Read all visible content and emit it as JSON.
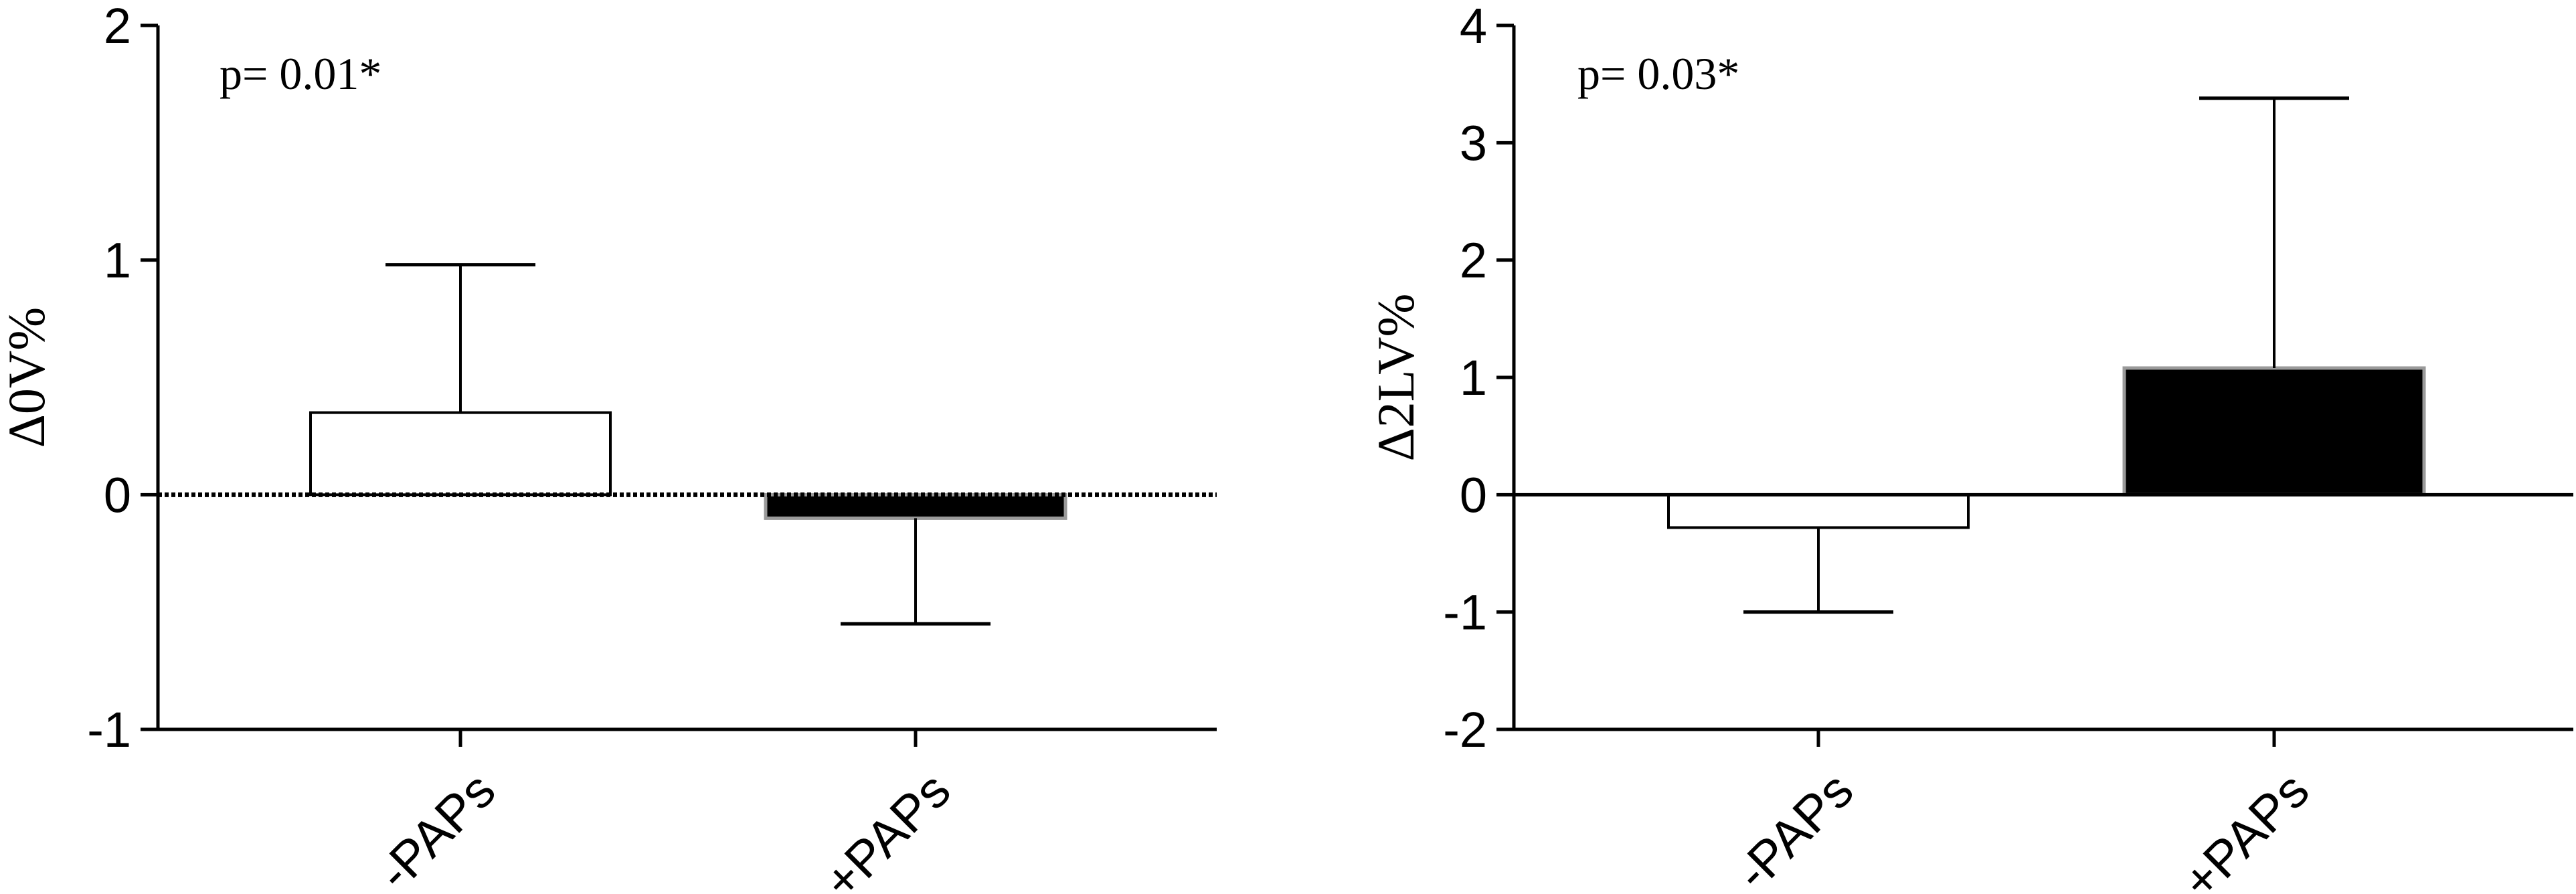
{
  "chart_data": [
    {
      "type": "bar",
      "ylabel": "Δ0V%",
      "annotation": "p= 0.01*",
      "ylim": [
        -1,
        2
      ],
      "yticks": [
        "-1",
        "0",
        "1",
        "2"
      ],
      "categories": [
        "-PAPs",
        "+PAPs"
      ],
      "values": [
        0.35,
        -0.1
      ],
      "error_bars": [
        0.63,
        -0.45
      ],
      "bar_colors": [
        "#ffffff",
        "#000000"
      ],
      "zero_line": "dotted",
      "grid": false
    },
    {
      "type": "bar",
      "ylabel": "Δ2LV%",
      "annotation": "p= 0.03*",
      "ylim": [
        -2,
        4
      ],
      "yticks": [
        "-2",
        "-1",
        "0",
        "1",
        "2",
        "3",
        "4"
      ],
      "categories": [
        "-PAPs",
        "+PAPs"
      ],
      "values": [
        -0.28,
        1.08
      ],
      "error_bars": [
        -0.72,
        2.3
      ],
      "bar_colors": [
        "#ffffff",
        "#000000"
      ],
      "zero_line": "solid",
      "grid": false
    }
  ]
}
